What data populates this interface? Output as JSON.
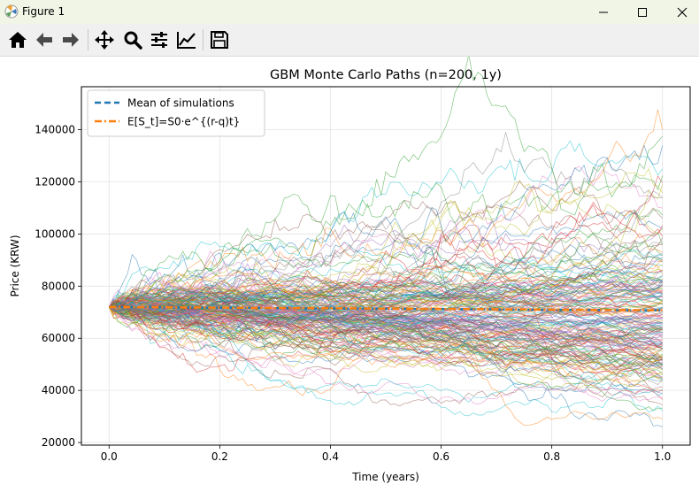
{
  "window": {
    "title": "Figure 1"
  },
  "toolbar": {
    "buttons": [
      {
        "name": "home-icon"
      },
      {
        "name": "back-arrow-icon"
      },
      {
        "name": "forward-arrow-icon"
      },
      {
        "name": "pan-move-icon"
      },
      {
        "name": "zoom-magnifier-icon"
      },
      {
        "name": "configure-subplots-icon"
      },
      {
        "name": "edit-axis-icon"
      },
      {
        "name": "save-floppy-icon"
      }
    ]
  },
  "chart_data": {
    "type": "line",
    "title": "GBM Monte Carlo Paths (n=200, 1y)",
    "xlabel": "Time (years)",
    "ylabel": "Price (KRW)",
    "xlim": [
      -0.05,
      1.05
    ],
    "ylim": [
      19000,
      156500
    ],
    "xticks": [
      0.0,
      0.2,
      0.4,
      0.6,
      0.8,
      1.0
    ],
    "xtick_labels": [
      "0.0",
      "0.2",
      "0.4",
      "0.6",
      "0.8",
      "1.0"
    ],
    "yticks": [
      20000,
      40000,
      60000,
      80000,
      100000,
      120000,
      140000
    ],
    "ytick_labels": [
      "20000",
      "40000",
      "60000",
      "80000",
      "100000",
      "120000",
      "140000"
    ],
    "grid": true,
    "legend": {
      "position": "upper-left",
      "entries": [
        {
          "label": "Mean of simulations",
          "color": "#1f77b4",
          "style": "dashed"
        },
        {
          "label": "E[S_t]=S0·e^{(r-q)t}",
          "color": "#ff7f0e",
          "style": "dashdot"
        }
      ]
    },
    "s0": 72000,
    "n_paths": 200,
    "mean_series": {
      "x": [
        0.0,
        0.2,
        0.4,
        0.6,
        0.8,
        1.0
      ],
      "values": [
        72000,
        71700,
        71400,
        71200,
        70900,
        70700
      ]
    },
    "expected_series": {
      "x": [
        0.0,
        0.2,
        0.4,
        0.6,
        0.8,
        1.0
      ],
      "values": [
        72000,
        71750,
        71500,
        71250,
        71000,
        70700
      ]
    },
    "path_terminal_values": [
      26000,
      29000,
      33000,
      36000,
      38000,
      40000,
      42000,
      44000,
      46000,
      48000,
      50000,
      52000,
      54000,
      56000,
      58000,
      60000,
      62000,
      64000,
      66000,
      68000,
      70000,
      72000,
      74000,
      76000,
      78000,
      80000,
      82000,
      84000,
      86000,
      88000,
      90000,
      93000,
      96000,
      99000,
      102000,
      106000,
      110000,
      114000,
      119000,
      125000,
      134000,
      140000
    ],
    "path_peak_values": [
      153000,
      148000,
      145000,
      138000,
      131000,
      124000,
      120000
    ],
    "palette": [
      "#1f77b4",
      "#ff7f0e",
      "#2ca02c",
      "#d62728",
      "#9467bd",
      "#8c564b",
      "#e377c2",
      "#7f7f7f",
      "#bcbd22",
      "#17becf"
    ]
  }
}
